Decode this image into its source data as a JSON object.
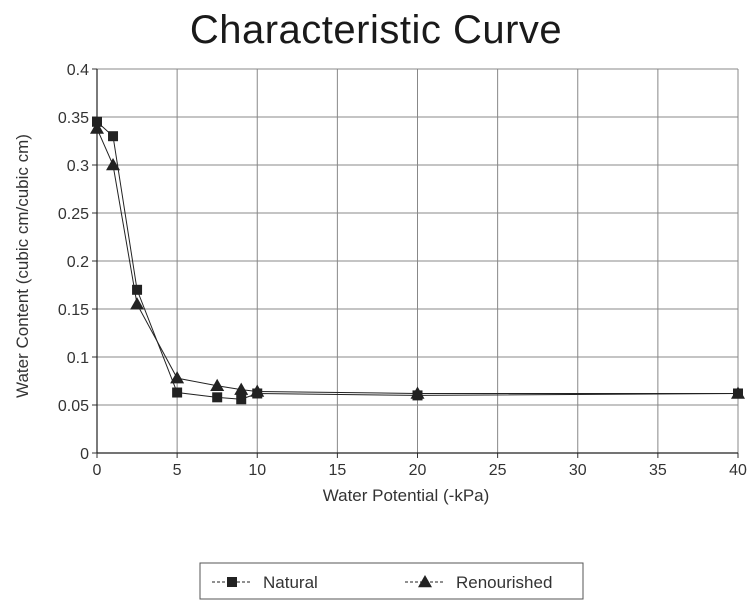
{
  "chart_data": {
    "type": "line",
    "title": "Characteristic Curve",
    "xlabel": "Water Potential (-kPa)",
    "ylabel": "Water Content (cubic cm/cubic cm)",
    "xlim": [
      0,
      40
    ],
    "ylim": [
      0,
      0.4
    ],
    "x_ticks": [
      "0",
      "5",
      "10",
      "15",
      "20",
      "25",
      "30",
      "35",
      "40"
    ],
    "y_ticks": [
      "0",
      "0.05",
      "0.1",
      "0.15",
      "0.2",
      "0.25",
      "0.3",
      "0.35",
      "0.4"
    ],
    "grid": true,
    "legend_position": "bottom",
    "series": [
      {
        "name": "Natural",
        "marker": "square",
        "color": "#222222",
        "x": [
          0,
          1,
          2.5,
          5,
          7.5,
          9,
          10,
          20,
          40
        ],
        "y": [
          0.345,
          0.33,
          0.17,
          0.063,
          0.058,
          0.056,
          0.062,
          0.06,
          0.062
        ]
      },
      {
        "name": "Renourished",
        "marker": "triangle",
        "color": "#222222",
        "x": [
          0,
          1,
          2.5,
          5,
          7.5,
          9,
          10,
          20,
          40
        ],
        "y": [
          0.338,
          0.3,
          0.155,
          0.078,
          0.07,
          0.066,
          0.064,
          0.062,
          0.062
        ]
      }
    ]
  }
}
